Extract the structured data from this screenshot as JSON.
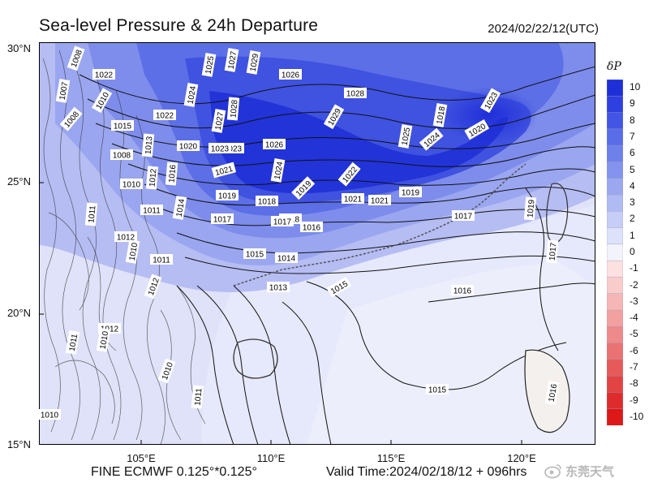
{
  "header": {
    "title": "Sea-level Pressure & 24h Departure",
    "datetime": "2024/02/22/12(UTC)"
  },
  "axes": {
    "lat_labels": [
      "30°N",
      "25°N",
      "20°N",
      "15°N"
    ],
    "lon_labels": [
      "105°E",
      "110°E",
      "115°E",
      "120°E"
    ]
  },
  "footer": {
    "model": "FINE ECMWF 0.125°*0.125°",
    "valid_time": "Valid Time:2024/02/18/12 + 096hrs"
  },
  "watermark": {
    "text": "东莞天气"
  },
  "colorbar": {
    "title": "δP",
    "levels": [
      "10",
      "9",
      "8",
      "7",
      "6",
      "5",
      "4",
      "3",
      "2",
      "1",
      "0",
      "-1",
      "-2",
      "-3",
      "-4",
      "-5",
      "-6",
      "-7",
      "-8",
      "-9",
      "-10"
    ],
    "colors": [
      "#1f2fd8",
      "#2f40e0",
      "#4255e4",
      "#5a6de8",
      "#6e80ea",
      "#8493ee",
      "#9ba8f0",
      "#b0baf3",
      "#c6cdf6",
      "#dde1fa",
      "#f3f3fb",
      "#fde0e0",
      "#f9cccc",
      "#f6b6b6",
      "#f2a0a0",
      "#ee8a8a",
      "#ea7272",
      "#e65a5a",
      "#e24343",
      "#de2c2c",
      "#dc1818"
    ]
  },
  "isobar_labels": [
    "1008",
    "1022",
    "1007",
    "1010",
    "1008",
    "1015",
    "1022",
    "1024",
    "1025",
    "1027",
    "1029",
    "1028",
    "1026",
    "1023",
    "1027",
    "1028",
    "1013",
    "1020",
    "1023",
    "1026",
    "1029",
    "1008",
    "1025",
    "1024",
    "1020",
    "1012",
    "1016",
    "1021",
    "1024",
    "1018",
    "1022",
    "1019",
    "1010",
    "1011",
    "1014",
    "1019",
    "1018",
    "1023",
    "1021",
    "1021",
    "1019",
    "1017",
    "1017",
    "1017",
    "1016",
    "1011",
    "1012",
    "1011",
    "1015",
    "1014",
    "1019",
    "1018",
    "1010",
    "1013",
    "1015",
    "1016",
    "1012",
    "1010",
    "1012",
    "1011",
    "1010",
    "1011",
    "1015",
    "1017",
    "1016",
    "1010"
  ]
}
